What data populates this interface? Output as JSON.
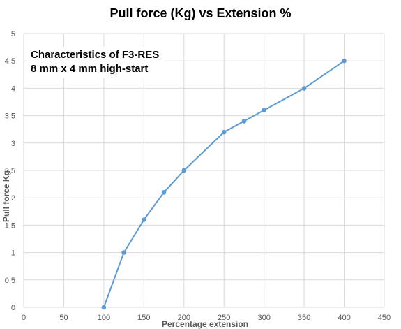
{
  "chart_data": {
    "type": "line",
    "title": "Pull force (Kg) vs Extension %",
    "xlabel": "Percentage extension",
    "ylabel": "Pull force Kg",
    "annotation": [
      "Characteristics of F3-RES",
      "8 mm x 4 mm high-start"
    ],
    "xlim": [
      0,
      450
    ],
    "ylim": [
      0,
      5
    ],
    "x_ticks": [
      "0",
      "50",
      "100",
      "150",
      "200",
      "250",
      "300",
      "350",
      "400",
      "450"
    ],
    "y_ticks": [
      "0",
      "0,5",
      "1",
      "1,5",
      "2",
      "2,5",
      "3",
      "3,5",
      "4",
      "4,5",
      "5"
    ],
    "grid": true,
    "series": [
      {
        "color": "#5b9bd5",
        "x": [
          100,
          125,
          150,
          175,
          200,
          250,
          275,
          300,
          350,
          400
        ],
        "y": [
          0,
          1,
          1.6,
          2.1,
          2.5,
          3.2,
          3.4,
          3.6,
          4.0,
          4.5
        ]
      }
    ]
  }
}
